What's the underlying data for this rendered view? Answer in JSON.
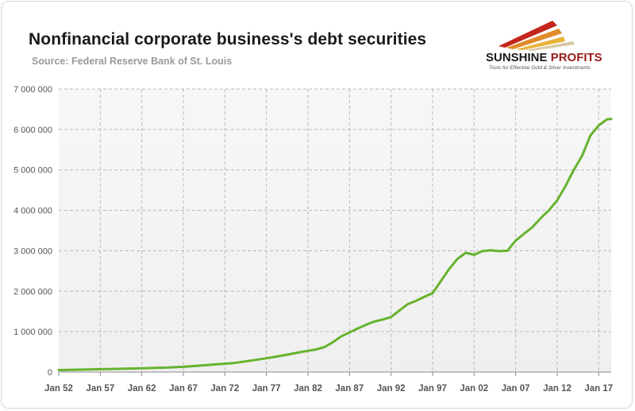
{
  "chart_data": {
    "type": "line",
    "title": "Nonfinancial corporate business's debt securities",
    "subtitle": "Source: Federal Reserve Bank of St. Louis",
    "xlabel": "",
    "ylabel": "",
    "x_range": [
      1952,
      2018.5
    ],
    "ylim": [
      0,
      7000000
    ],
    "y_ticks": [
      0,
      1000000,
      2000000,
      3000000,
      4000000,
      5000000,
      6000000,
      7000000
    ],
    "y_tick_labels": [
      "0",
      "1 000 000",
      "2 000 000",
      "3 000 000",
      "4 000 000",
      "5 000 000",
      "6 000 000",
      "7 000 000"
    ],
    "x_ticks": [
      1952,
      1957,
      1962,
      1967,
      1972,
      1977,
      1982,
      1987,
      1992,
      1997,
      2002,
      2007,
      2012,
      2017
    ],
    "x_tick_labels": [
      "Jan 52",
      "Jan 57",
      "Jan 62",
      "Jan 67",
      "Jan 72",
      "Jan 77",
      "Jan 82",
      "Jan 87",
      "Jan 92",
      "Jan 97",
      "Jan 02",
      "Jan 07",
      "Jan 12",
      "Jan 17"
    ],
    "grid": true,
    "line_color": "#66b32e",
    "series": [
      {
        "x": [
          1952,
          1955,
          1958,
          1960,
          1962,
          1965,
          1967,
          1969,
          1971,
          1973,
          1975,
          1977,
          1979,
          1981,
          1983,
          1984,
          1985,
          1986,
          1987,
          1988,
          1989,
          1990,
          1991,
          1992,
          1993,
          1994,
          1995,
          1996,
          1997,
          1998,
          1999,
          2000,
          2001,
          2002,
          2003,
          2004,
          2005,
          2006,
          2007,
          2008,
          2009,
          2010,
          2011,
          2012,
          2013,
          2014,
          2015,
          2016,
          2017,
          2018,
          2018.5
        ],
        "values": [
          50000,
          60000,
          75000,
          85000,
          95000,
          110000,
          130000,
          160000,
          190000,
          220000,
          280000,
          340000,
          410000,
          490000,
          560000,
          620000,
          740000,
          880000,
          980000,
          1080000,
          1170000,
          1250000,
          1300000,
          1360000,
          1520000,
          1680000,
          1760000,
          1860000,
          1950000,
          2250000,
          2550000,
          2800000,
          2950000,
          2900000,
          2990000,
          3010000,
          2990000,
          3000000,
          3250000,
          3420000,
          3580000,
          3800000,
          4000000,
          4250000,
          4600000,
          5000000,
          5350000,
          5850000,
          6100000,
          6250000,
          6260000
        ]
      }
    ]
  },
  "brand": {
    "name_part1": "SUNSHINE ",
    "name_part2": "PROFITS",
    "tagline": "Tools for Effective Gold & Silver Investments"
  }
}
